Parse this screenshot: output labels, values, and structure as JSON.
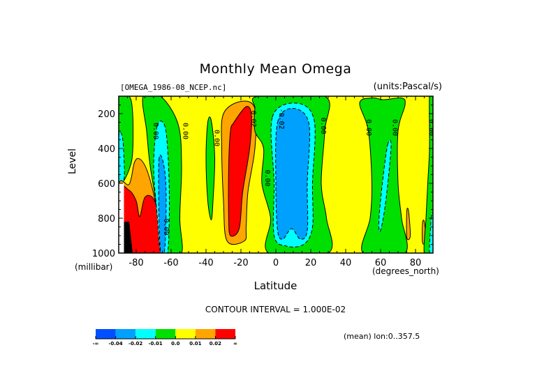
{
  "title": "Monthly Mean Omega",
  "file_label": "[OMEGA_1986-08_NCEP.nc]",
  "units_label": "(units:Pascal/s)",
  "y_axis_label": "Level",
  "y_axis_unit": "(millibar)",
  "x_axis_label": "Latitude",
  "x_axis_unit": "(degrees_north)",
  "contour_interval_text": "CONTOUR INTERVAL = 1.000E-02",
  "mean_text": "(mean) lon:0..357.5",
  "chart_data": {
    "type": "heatmap",
    "title": "Monthly Mean Omega",
    "subtitle_left": "[OMEGA_1986-08_NCEP.nc]",
    "subtitle_right": "(units:Pascal/s)",
    "xlabel": "Latitude",
    "ylabel": "Level",
    "xlim": [
      -90,
      90
    ],
    "ylim": [
      100,
      1000
    ],
    "y_inverted": true,
    "x_ticks": [
      -80,
      -60,
      -40,
      -20,
      0,
      20,
      40,
      60,
      80
    ],
    "x_tick_labels": [
      "-80",
      "-60",
      "-40",
      "-20",
      "0",
      "20",
      "40",
      "60",
      "80"
    ],
    "y_ticks": [
      200,
      400,
      600,
      800,
      1000
    ],
    "y_tick_labels": [
      "200",
      "400",
      "600",
      "800",
      "1000"
    ],
    "contour_interval": 0.01,
    "colorbar": {
      "boundaries_labels": [
        "-∞",
        "-0.04",
        "-0.02",
        "-0.01",
        "0.0",
        "0.01",
        "0.02",
        "∞"
      ],
      "colors": [
        "#0050ff",
        "#00a0ff",
        "#00ffff",
        "#00e000",
        "#ffff00",
        "#ffa500",
        "#ff0000"
      ]
    },
    "background_color": "#ffff00",
    "regions": [
      {
        "name": "sh-polar-green-upper",
        "color": "#00e000",
        "dashed": false,
        "pts": [
          [
            -90,
            100
          ],
          [
            -84,
            100
          ],
          [
            -82,
            200
          ],
          [
            -82,
            420
          ],
          [
            -84,
            520
          ],
          [
            -88,
            600
          ],
          [
            -90,
            600
          ]
        ]
      },
      {
        "name": "sh-polar-cyan",
        "color": "#00ffff",
        "dashed": true,
        "pts": [
          [
            -90,
            330
          ],
          [
            -88,
            330
          ],
          [
            -87,
            450
          ],
          [
            -87,
            580
          ],
          [
            -90,
            600
          ]
        ]
      },
      {
        "name": "sh-orange-a",
        "color": "#ffa500",
        "dashed": false,
        "pts": [
          [
            -90,
            610
          ],
          [
            -84,
            605
          ],
          [
            -81,
            480
          ],
          [
            -78,
            460
          ],
          [
            -74,
            520
          ],
          [
            -70,
            660
          ],
          [
            -66,
            860
          ],
          [
            -64,
            1000
          ],
          [
            -90,
            1000
          ]
        ]
      },
      {
        "name": "sh-red-a",
        "color": "#ff0000",
        "dashed": false,
        "pts": [
          [
            -90,
            640
          ],
          [
            -84,
            640
          ],
          [
            -80,
            700
          ],
          [
            -78,
            790
          ],
          [
            -75,
            680
          ],
          [
            -70,
            690
          ],
          [
            -66,
            830
          ],
          [
            -64,
            1000
          ],
          [
            -90,
            1000
          ]
        ]
      },
      {
        "name": "sh-black-missing",
        "color": "#000000",
        "dashed": false,
        "pts": [
          [
            -87,
            820
          ],
          [
            -84,
            820
          ],
          [
            -82,
            1000
          ],
          [
            -87,
            1000
          ]
        ]
      },
      {
        "name": "sh-white-missing",
        "color": "#ffffff",
        "dashed": false,
        "pts": [
          [
            -90,
            600
          ],
          [
            -87,
            600
          ],
          [
            -87,
            1000
          ],
          [
            -90,
            1000
          ]
        ]
      },
      {
        "name": "sh-green-60",
        "color": "#00e000",
        "dashed": false,
        "pts": [
          [
            -76,
            100
          ],
          [
            -66,
            100
          ],
          [
            -56,
            260
          ],
          [
            -54,
            500
          ],
          [
            -55,
            800
          ],
          [
            -54,
            1000
          ],
          [
            -64,
            1000
          ],
          [
            -67,
            800
          ],
          [
            -72,
            500
          ],
          [
            -74,
            300
          ]
        ]
      },
      {
        "name": "sh-cyan-60",
        "color": "#00ffff",
        "dashed": true,
        "pts": [
          [
            -68,
            270
          ],
          [
            -64,
            260
          ],
          [
            -62,
            400
          ],
          [
            -61,
            700
          ],
          [
            -62,
            1000
          ],
          [
            -66,
            1000
          ],
          [
            -68,
            780
          ],
          [
            -70,
            500
          ]
        ]
      },
      {
        "name": "sh-blue-60",
        "color": "#00a0ff",
        "dashed": true,
        "pts": [
          [
            -67,
            470
          ],
          [
            -65,
            460
          ],
          [
            -63,
            600
          ],
          [
            -63,
            850
          ],
          [
            -64,
            1000
          ],
          [
            -66,
            1000
          ],
          [
            -67,
            760
          ]
        ]
      },
      {
        "name": "sh-green-40",
        "color": "#00e000",
        "dashed": false,
        "pts": [
          [
            -39,
            250
          ],
          [
            -37,
            240
          ],
          [
            -35,
            450
          ],
          [
            -36,
            700
          ],
          [
            -37,
            810
          ],
          [
            -39,
            700
          ],
          [
            -40,
            450
          ]
        ]
      },
      {
        "name": "sub-orange",
        "color": "#ffa500",
        "dashed": false,
        "pts": [
          [
            -30,
            200
          ],
          [
            -20,
            130
          ],
          [
            -12,
            170
          ],
          [
            -12,
            400
          ],
          [
            -16,
            650
          ],
          [
            -17,
            850
          ],
          [
            -18,
            930
          ],
          [
            -28,
            930
          ],
          [
            -30,
            700
          ],
          [
            -31,
            400
          ]
        ]
      },
      {
        "name": "sub-red",
        "color": "#ff0000",
        "dashed": false,
        "pts": [
          [
            -24,
            250
          ],
          [
            -17,
            160
          ],
          [
            -14,
            210
          ],
          [
            -15,
            400
          ],
          [
            -19,
            650
          ],
          [
            -21,
            860
          ],
          [
            -26,
            900
          ],
          [
            -27,
            800
          ],
          [
            -27,
            500
          ],
          [
            -26,
            300
          ]
        ]
      },
      {
        "name": "eq-green",
        "color": "#00e000",
        "dashed": false,
        "pts": [
          [
            -10,
            100
          ],
          [
            28,
            100
          ],
          [
            28,
            300
          ],
          [
            26,
            600
          ],
          [
            29,
            800
          ],
          [
            30,
            1000
          ],
          [
            -4,
            1000
          ],
          [
            -3,
            800
          ],
          [
            -8,
            600
          ],
          [
            -7,
            400
          ],
          [
            -12,
            300
          ],
          [
            -12,
            170
          ]
        ]
      },
      {
        "name": "eq-cyan",
        "color": "#00ffff",
        "dashed": true,
        "pts": [
          [
            -2,
            220
          ],
          [
            12,
            140
          ],
          [
            22,
            240
          ],
          [
            21,
            600
          ],
          [
            21,
            850
          ],
          [
            16,
            950
          ],
          [
            6,
            960
          ],
          [
            -1,
            900
          ],
          [
            -1,
            600
          ]
        ]
      },
      {
        "name": "eq-blue",
        "color": "#00a0ff",
        "dashed": true,
        "pts": [
          [
            1,
            250
          ],
          [
            10,
            170
          ],
          [
            19,
            260
          ],
          [
            18,
            600
          ],
          [
            18,
            870
          ],
          [
            14,
            920
          ],
          [
            9,
            860
          ],
          [
            4,
            920
          ],
          [
            1,
            870
          ],
          [
            0,
            600
          ]
        ]
      },
      {
        "name": "nh-green-60",
        "color": "#00e000",
        "dashed": false,
        "pts": [
          [
            48,
            140
          ],
          [
            55,
            110
          ],
          [
            62,
            120
          ],
          [
            72,
            110
          ],
          [
            74,
            150
          ],
          [
            70,
            300
          ],
          [
            70,
            600
          ],
          [
            72,
            800
          ],
          [
            74,
            1000
          ],
          [
            50,
            1000
          ],
          [
            54,
            800
          ],
          [
            55,
            600
          ],
          [
            53,
            300
          ]
        ]
      },
      {
        "name": "nh-cyan-60",
        "color": "#00ffff",
        "dashed": true,
        "pts": [
          [
            64,
            380
          ],
          [
            66,
            390
          ],
          [
            63,
            700
          ],
          [
            60,
            870
          ],
          [
            59,
            820
          ],
          [
            61,
            600
          ]
        ]
      },
      {
        "name": "nh-orange-75",
        "color": "#ffa500",
        "dashed": false,
        "pts": [
          [
            75,
            760
          ],
          [
            76,
            760
          ],
          [
            77,
            900
          ],
          [
            75,
            910
          ]
        ]
      },
      {
        "name": "nh-orange-85",
        "color": "#ffa500",
        "dashed": false,
        "pts": [
          [
            84,
            830
          ],
          [
            85,
            820
          ],
          [
            86,
            930
          ],
          [
            84,
            940
          ]
        ]
      },
      {
        "name": "np-green",
        "color": "#00e000",
        "dashed": false,
        "pts": [
          [
            88,
            100
          ],
          [
            90,
            100
          ],
          [
            90,
            1000
          ],
          [
            85,
            1000
          ],
          [
            86,
            800
          ],
          [
            87,
            600
          ],
          [
            88,
            400
          ]
        ]
      },
      {
        "name": "np-cyan",
        "color": "#00ffff",
        "dashed": true,
        "pts": [
          [
            89,
            800
          ],
          [
            90,
            790
          ],
          [
            90,
            1000
          ],
          [
            88,
            1000
          ]
        ]
      }
    ],
    "contour_labels": [
      {
        "text": "0.00",
        "lat": -70,
        "lev": 300
      },
      {
        "text": "0.00",
        "lat": -53,
        "lev": 300
      },
      {
        "text": "0.00",
        "lat": -35,
        "lev": 340
      },
      {
        "text": "0.02",
        "lat": -14,
        "lev": 230
      },
      {
        "text": "0.00",
        "lat": -6,
        "lev": 570
      },
      {
        "text": "-0.02",
        "lat": 2,
        "lev": 230
      },
      {
        "text": "0.00",
        "lat": 26,
        "lev": 270
      },
      {
        "text": "0.00",
        "lat": 52,
        "lev": 280
      },
      {
        "text": "0.00",
        "lat": 67,
        "lev": 280
      },
      {
        "text": "0.00",
        "lat": 88,
        "lev": 280
      },
      {
        "text": "0.00",
        "lat": -64,
        "lev": 850
      }
    ]
  }
}
